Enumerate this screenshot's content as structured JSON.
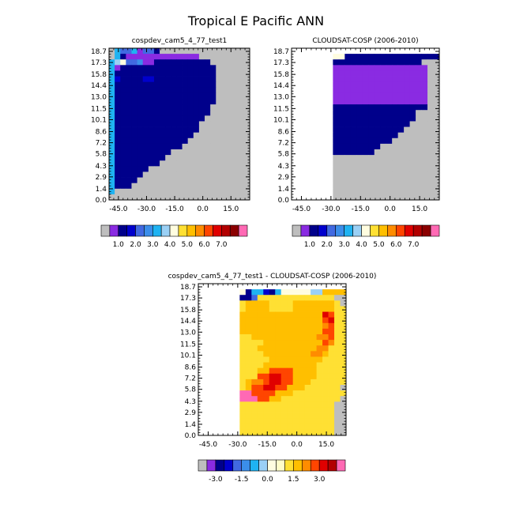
{
  "page": {
    "title": "Tropical E Pacific ANN"
  },
  "colors": {
    "missing": "#bebebe",
    "frame": "#000000"
  },
  "colorbars": {
    "abs": {
      "colors": [
        "#bebebe",
        "#8a2be2",
        "#00008b",
        "#0000cd",
        "#4169e1",
        "#3b8eea",
        "#1fb3f2",
        "#9ad0f5",
        "#fffde0",
        "#ffe033",
        "#ffbf00",
        "#ff8c00",
        "#ff4500",
        "#e00000",
        "#b20000",
        "#8b0000",
        "#ff69b4"
      ],
      "labels": [
        "1.0",
        "2.0",
        "3.0",
        "4.0",
        "5.0",
        "6.0",
        "7.0"
      ]
    },
    "diff": {
      "colors": [
        "#bebebe",
        "#8a2be2",
        "#00008b",
        "#0000cd",
        "#4169e1",
        "#3b8eea",
        "#1fb3f2",
        "#9ad0f5",
        "#fffde0",
        "#fffdc8",
        "#ffe033",
        "#ffbf00",
        "#ff8c00",
        "#ff4500",
        "#e00000",
        "#b20000",
        "#ff69b4"
      ],
      "labels": [
        "-3.0",
        "-1.5",
        "0.0",
        "1.5",
        "3.0"
      ]
    }
  },
  "chart_data": [
    {
      "type": "heatmap",
      "title": "cospdev_cam5_4_77_test1",
      "xlabel": "",
      "ylabel": "",
      "x_ticks": [
        "-45.0",
        "-30.0",
        "-15.0",
        "0.0",
        "15.0"
      ],
      "x_tick_values": [
        -45,
        -30,
        -15,
        0,
        15
      ],
      "xlim": [
        -50,
        25
      ],
      "y_ticks": [
        "0.0",
        "1.4",
        "2.9",
        "4.3",
        "5.8",
        "7.2",
        "8.6",
        "10.1",
        "11.5",
        "13.0",
        "14.4",
        "15.8",
        "17.3",
        "18.7"
      ],
      "grid": {
        "nx": 25,
        "ny": 27,
        "x0": -50,
        "dx": 3,
        "y0": 0,
        "dy": 0.72
      },
      "cmap": "abs",
      "rows": [
        "_fddfaddb_______________",
        "_fbaaaaaaaaaaaaa_______",
        "fghddeaabbbbbbbbbb______",
        "fabbbbbbbbbbbbbbbbb______",
        "fbbbbbbbbbbbbbbbbbb______",
        "fcbbbbccbbbbbbbbbbb______",
        "fbbbbbbbbbbbbbbbbbb______",
        "fbbbbbbbbbbbbbbbbbb______",
        "fbbbbbbbbbbbbbbbbbb______",
        "fbbbbbbbbbbbbbbbbbb______",
        "fbbbbbbbbbbbbbbbbb_______",
        "fbbbbbbbbbbbbbbbbb_______",
        "fbbbbbbbbbbbbbbbb________",
        "fbbbbbbbbbbbbbbb_________",
        "fbbbbbbbbbbbbbbb_________",
        "fbbbbbbbbbbbbbb__________",
        "fbbbbbbbbbbbbb___________",
        "fbbbbbbbbbbbb____________",
        "fbbbbbbbbbb______________",
        "fbbbbbbbbb_______________",
        "fbbbbbbbb________________",
        "fbbbbbb__________________",
        "fbbbbb___________________",
        "fbbbb____________________",
        "fbbb_____________________",
        "f________________________",
        "_________________________"
      ]
    },
    {
      "type": "heatmap",
      "title": "CLOUDSAT-COSP (2006-2010)",
      "xlabel": "",
      "ylabel": "",
      "x_ticks": [
        "-45.0",
        "-30.0",
        "-15.0",
        "0.0",
        "15.0"
      ],
      "x_tick_values": [
        -45,
        -30,
        -15,
        0,
        15
      ],
      "xlim": [
        -50,
        25
      ],
      "y_ticks": [
        "0.0",
        "1.4",
        "2.9",
        "4.3",
        "5.8",
        "7.2",
        "8.6",
        "10.1",
        "11.5",
        "13.0",
        "14.4",
        "15.8",
        "17.3",
        "18.7"
      ],
      "grid": {
        "nx": 25,
        "ny": 27,
        "x0": -50,
        "dx": 3,
        "y0": 0,
        "dy": 0.72
      },
      "cmap": "abs",
      "rows": [
        "wwwwwwwwwwwwwwwwwwwwwwwww",
        "wwwwwwwhhbbbbbbbbbbbbbbbb",
        "wwwwwwwbbbbbbbbbbbbbbb___",
        "wwwwwwwaaaaaaaaaaaaaaaa__",
        "wwwwwwwaaaaaaaaaaaaaaaa__",
        "wwwwwwwaaaaaaaaaaaaaaaa__",
        "wwwwwwwaaaaaaaaaaaaaaaa__",
        "wwwwwwwaaaaaaaaaaaaaaaa__",
        "wwwwwwwaaaaaaaaaaaaaaaa__",
        "wwwwwwwaaaaaaaaaaaaaaaa__",
        "wwwwwwwbbbbbbbbbbbbbbbb__",
        "wwwwwwwbbbbbbbbbbbbbb____",
        "wwwwwwwbbbbbbbbbbbbbb____",
        "wwwwwwwbbbbbbbbbbbbb_____",
        "wwwwwwwbbbbbbbbbbbb______",
        "wwwwwwwbbbbbbbbbbb_______",
        "wwwwwwwbbbbbbbbbb________",
        "wwwwwwwbbbbbbbb__________",
        "wwwwwwwbbbbbbb___________",
        "wwwwwww__________________",
        "wwwwwww__________________",
        "wwwwwww__________________",
        "wwwwwww__________________",
        "wwwwwww__________________",
        "wwwwwww__________________",
        "wwwwwww__________________",
        "wwwwwww__________________"
      ]
    },
    {
      "type": "heatmap",
      "title": "cospdev_cam5_4_77_test1 - CLOUDSAT-COSP (2006-2010)",
      "xlabel": "",
      "ylabel": "",
      "x_ticks": [
        "-45.0",
        "-30.0",
        "-15.0",
        "0.0",
        "15.0"
      ],
      "x_tick_values": [
        -45,
        -30,
        -15,
        0,
        15
      ],
      "xlim": [
        -50,
        25
      ],
      "y_ticks": [
        "0.0",
        "1.4",
        "2.9",
        "4.3",
        "5.8",
        "7.2",
        "8.6",
        "10.1",
        "11.5",
        "13.0",
        "14.4",
        "15.8",
        "17.3",
        "18.7"
      ],
      "grid": {
        "nx": 25,
        "ny": 27,
        "x0": -50,
        "dx": 3,
        "y0": 0,
        "dy": 0.72
      },
      "cmap": "diff",
      "rows": [
        "wwwwwwwwwwwwwwwwwwwwwwwww",
        "wwwwwwwhbffcbfhhhhhggkkkk",
        "wwwwwwwbbdjjjjjjjjjjjjj__",
        "wwwwwwwjkkkkjjjjkkkkkkkj_",
        "wwwwwwwjkkkkjjjjkkkkkkkjj",
        "wwwwwwwkkkkkkkkkkkkkknmjj",
        "wwwwwwwkkkkkkkkkkkkkkmnjj",
        "wwwwwwwkkkkkkkkkkkkkklmjj",
        "wwwwwwwkkkkkkkkkkkkkkmmjj",
        "wwwwwwwjjkkkkkkkkkkkllmjj",
        "wwwwwwwjjjjkkkkkkkkkkmljj",
        "wwwwwwwjjjkkkkkkkkkklljjj",
        "wwwwwwwjjjjkkkkkkkkllkjjj",
        "wwwwwwwjjjjjkkkkkkkkkjjjj",
        "wwwwwwwjjjjkkkkkkkkkjjjjj",
        "wwwwwwwjjjkkmmmmkkkkjjjjj",
        "wwwwwwwjjjmmnnmmkkkkjjjjj",
        "wwwwwwwjkllmnnmmkkkjjjjjj",
        "wwwwwwwjkmmnnmmkkkjjjjjj_",
        "wwwwwwwqqmmmmkkkjjjjjjjjj",
        "wwwwwwwqqqmmkkjjjjjjjjjj_",
        "wwwwwwwjjjjjjjjjjjjjjjj__",
        "wwwwwwwjjjjjjjjjjjjjjjj__",
        "wwwwwwwjjjjjjjjjjjjjjjj__",
        "wwwwwwwjjjjjjjjjjjjjjjj__",
        "wwwwwwwjjjjjjjjjjjjjjjj__",
        "wwwwwwwjjjjjjjjjjjjjjjj__"
      ]
    }
  ]
}
